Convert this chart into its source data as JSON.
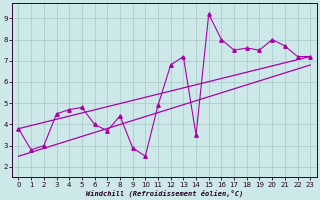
{
  "xlabel": "Windchill (Refroidissement éolien,°C)",
  "background_color": "#cce8e8",
  "grid_color": "#b0cccc",
  "line_color": "#aa00aa",
  "xlim": [
    -0.5,
    23.5
  ],
  "ylim": [
    1.5,
    9.7
  ],
  "xticks": [
    0,
    1,
    2,
    3,
    4,
    5,
    6,
    7,
    8,
    9,
    10,
    11,
    12,
    13,
    14,
    15,
    16,
    17,
    18,
    19,
    20,
    21,
    22,
    23
  ],
  "yticks": [
    2,
    3,
    4,
    5,
    6,
    7,
    8,
    9
  ],
  "series1_x": [
    0,
    1,
    2,
    3,
    4,
    5,
    6,
    7,
    8,
    9,
    10,
    11,
    12,
    13,
    14,
    15,
    16,
    17,
    18,
    19,
    20,
    21,
    22,
    23
  ],
  "series1_y": [
    3.8,
    2.8,
    3.0,
    4.5,
    4.7,
    4.8,
    4.0,
    3.7,
    4.4,
    2.9,
    2.5,
    4.9,
    6.8,
    7.2,
    3.5,
    9.2,
    8.0,
    7.5,
    7.6,
    7.5,
    8.0,
    7.7,
    7.2,
    7.2
  ],
  "trend1_x": [
    0,
    23
  ],
  "trend1_y": [
    3.8,
    7.2
  ],
  "trend2_x": [
    0,
    23
  ],
  "trend2_y": [
    2.5,
    6.8
  ]
}
